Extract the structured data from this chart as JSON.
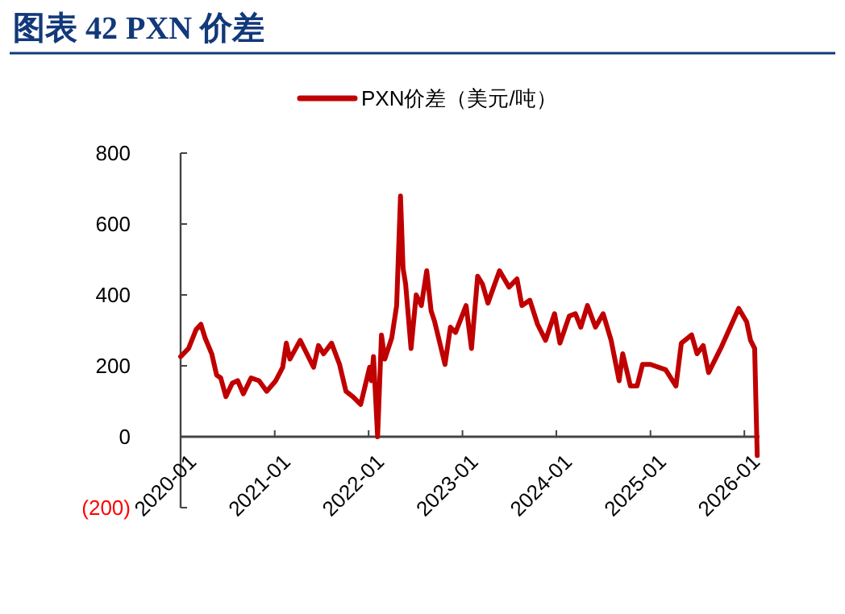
{
  "chart_data": {
    "type": "line",
    "title": "图表 42 PXN 价差",
    "legend": "top",
    "grid": false,
    "marker": "none",
    "line_style": "solid",
    "xlim": [
      "2020-01-01",
      "2026-03-01"
    ],
    "xticks": [
      {
        "value": "2020-01-01",
        "label": "2020-01"
      },
      {
        "value": "2021-01-01",
        "label": "2021-01"
      },
      {
        "value": "2022-01-01",
        "label": "2022-01"
      },
      {
        "value": "2023-01-01",
        "label": "2023-01"
      },
      {
        "value": "2024-01-01",
        "label": "2024-01"
      },
      {
        "value": "2025-01-01",
        "label": "2025-01"
      },
      {
        "value": "2026-01-01",
        "label": "2026-01"
      }
    ],
    "ylim": [
      -200,
      800
    ],
    "yticks": [
      800,
      600,
      400,
      200,
      0,
      {
        "value": -200,
        "label": "(200)"
      }
    ],
    "series": [
      {
        "name": "PXN价差（美元/吨）",
        "color": "#c00000",
        "x": [
          "2020-01-01",
          "2020-02-01",
          "2020-03-01",
          "2020-03-20",
          "2020-04-05",
          "2020-05-01",
          "2020-05-20",
          "2020-06-05",
          "2020-06-25",
          "2020-07-20",
          "2020-08-10",
          "2020-09-01",
          "2020-10-01",
          "2020-11-01",
          "2020-12-01",
          "2021-01-05",
          "2021-02-01",
          "2021-02-15",
          "2021-03-01",
          "2021-04-10",
          "2021-06-01",
          "2021-06-20",
          "2021-07-10",
          "2021-08-10",
          "2021-09-10",
          "2021-10-05",
          "2021-11-01",
          "2021-12-01",
          "2022-01-05",
          "2022-01-12",
          "2022-01-20",
          "2022-02-05",
          "2022-02-20",
          "2022-03-05",
          "2022-04-01",
          "2022-04-20",
          "2022-05-05",
          "2022-05-15",
          "2022-05-25",
          "2022-06-15",
          "2022-07-05",
          "2022-07-25",
          "2022-08-15",
          "2022-09-01",
          "2022-09-15",
          "2022-10-05",
          "2022-10-25",
          "2022-11-15",
          "2022-12-05",
          "2023-01-15",
          "2023-02-05",
          "2023-03-01",
          "2023-03-20",
          "2023-04-10",
          "2023-05-25",
          "2023-07-01",
          "2023-08-01",
          "2023-08-20",
          "2023-09-20",
          "2023-10-20",
          "2023-11-20",
          "2023-12-25",
          "2024-01-15",
          "2024-02-20",
          "2024-03-15",
          "2024-04-05",
          "2024-05-01",
          "2024-06-01",
          "2024-07-01",
          "2024-08-01",
          "2024-09-01",
          "2024-09-15",
          "2024-10-15",
          "2024-11-10",
          "2024-12-01",
          "2025-01-01",
          "2025-03-01",
          "2025-04-10",
          "2025-05-01",
          "2025-06-10",
          "2025-07-01",
          "2025-07-25",
          "2025-08-15",
          "2025-10-01",
          "2025-12-10",
          "2026-01-10",
          "2026-01-25",
          "2026-02-10",
          "2026-02-20"
        ],
        "values": [
          226,
          249,
          302,
          317,
          279,
          234,
          174,
          166,
          113,
          151,
          158,
          121,
          166,
          158,
          128,
          158,
          196,
          264,
          219,
          272,
          196,
          257,
          234,
          264,
          204,
          128,
          113,
          91,
          196,
          158,
          226,
          0,
          287,
          219,
          279,
          370,
          679,
          475,
          430,
          249,
          400,
          370,
          468,
          355,
          324,
          264,
          204,
          309,
          294,
          370,
          249,
          453,
          430,
          377,
          468,
          422,
          445,
          370,
          385,
          317,
          272,
          347,
          264,
          340,
          347,
          309,
          370,
          309,
          347,
          272,
          158,
          234,
          143,
          143,
          204,
          204,
          189,
          143,
          264,
          287,
          234,
          257,
          181,
          249,
          362,
          324,
          272,
          249,
          -53
        ]
      }
    ]
  }
}
